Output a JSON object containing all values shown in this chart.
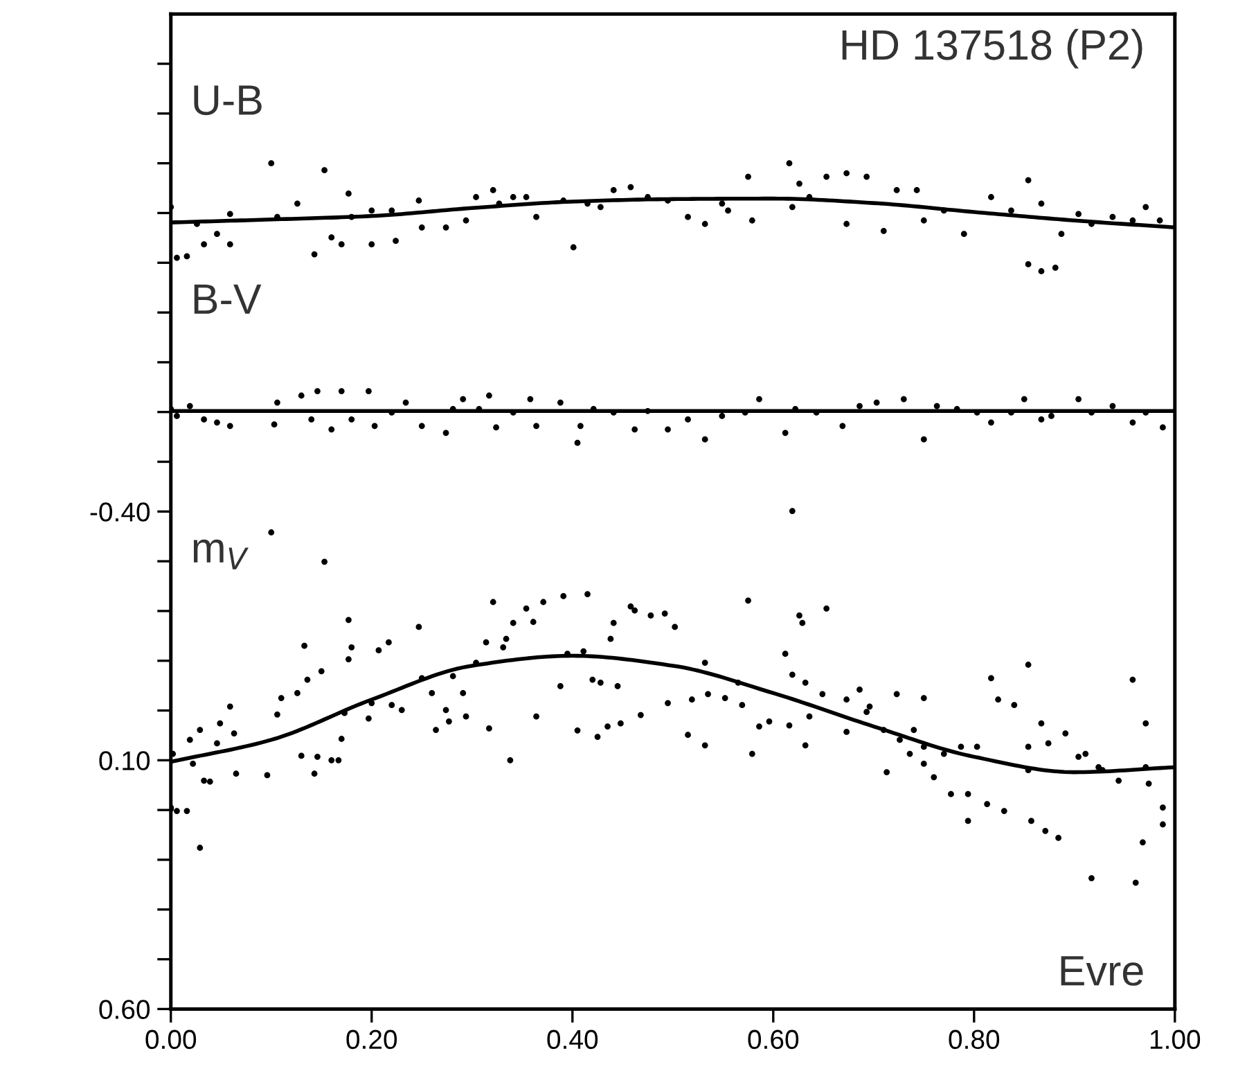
{
  "chart_data": {
    "type": "scatter",
    "title": "HD 137518 (P2)",
    "annotations": [
      "Evre"
    ],
    "xlim": [
      0.0,
      1.0
    ],
    "xticks": [
      {
        "value": 0.0,
        "label": "0.00"
      },
      {
        "value": 0.2,
        "label": "0.20"
      },
      {
        "value": 0.4,
        "label": "0.40"
      },
      {
        "value": 0.6,
        "label": "0.60"
      },
      {
        "value": 0.8,
        "label": "0.80"
      },
      {
        "value": 1.0,
        "label": "1.00"
      }
    ],
    "ylim": [
      0.6,
      -1.4
    ],
    "yticks": [
      {
        "value": -1.3,
        "label": null
      },
      {
        "value": -1.2,
        "label": null
      },
      {
        "value": -1.1,
        "label": null
      },
      {
        "value": -1.0,
        "label": null
      },
      {
        "value": -0.9,
        "label": null
      },
      {
        "value": -0.8,
        "label": null
      },
      {
        "value": -0.7,
        "label": null
      },
      {
        "value": -0.6,
        "label": null
      },
      {
        "value": -0.5,
        "label": null
      },
      {
        "value": -0.4,
        "label": "-0.40"
      },
      {
        "value": -0.3,
        "label": null
      },
      {
        "value": -0.2,
        "label": null
      },
      {
        "value": -0.1,
        "label": null
      },
      {
        "value": 0.0,
        "label": null
      },
      {
        "value": 0.1,
        "label": "0.10"
      },
      {
        "value": 0.2,
        "label": null
      },
      {
        "value": 0.3,
        "label": null
      },
      {
        "value": 0.4,
        "label": null
      },
      {
        "value": 0.5,
        "label": null
      },
      {
        "value": 0.6,
        "label": "0.60"
      }
    ],
    "grid": false,
    "legend": "left",
    "series": [
      {
        "name": "U-B",
        "color": "#000000",
        "marker": "circle",
        "x": [
          0.0,
          0.006,
          0.016,
          0.026,
          0.033,
          0.046,
          0.059,
          0.059,
          0.1,
          0.106,
          0.126,
          0.143,
          0.153,
          0.16,
          0.17,
          0.177,
          0.18,
          0.2,
          0.2,
          0.224,
          0.22,
          0.247,
          0.25,
          0.274,
          0.294,
          0.304,
          0.321,
          0.327,
          0.341,
          0.354,
          0.364,
          0.391,
          0.401,
          0.415,
          0.428,
          0.441,
          0.458,
          0.475,
          0.495,
          0.515,
          0.532,
          0.549,
          0.555,
          0.575,
          0.579,
          0.616,
          0.619,
          0.626,
          0.636,
          0.653,
          0.673,
          0.673,
          0.693,
          0.71,
          0.723,
          0.743,
          0.75,
          0.77,
          0.79,
          0.817,
          0.837,
          0.854,
          0.854,
          0.867,
          0.867,
          0.881,
          0.887,
          0.904,
          0.917,
          0.938,
          0.958,
          0.971,
          0.985
        ],
        "values": [
          -1.012,
          -0.91,
          -0.913,
          -0.978,
          -0.937,
          -0.958,
          -0.937,
          -0.998,
          -1.1,
          -0.992,
          -1.019,
          -0.917,
          -1.086,
          -0.951,
          -0.937,
          -1.039,
          -0.992,
          -1.005,
          -0.937,
          -0.944,
          -1.005,
          -1.025,
          -0.971,
          -0.971,
          -0.985,
          -1.032,
          -1.046,
          -1.019,
          -1.032,
          -1.032,
          -0.992,
          -1.025,
          -0.931,
          -1.019,
          -1.012,
          -1.046,
          -1.052,
          -1.032,
          -1.025,
          -0.992,
          -0.978,
          -1.019,
          -1.005,
          -1.073,
          -0.985,
          -1.1,
          -1.012,
          -1.059,
          -1.032,
          -1.073,
          -1.08,
          -0.978,
          -1.073,
          -0.964,
          -1.046,
          -1.046,
          -0.985,
          -1.005,
          -0.958,
          -1.032,
          -1.005,
          -1.066,
          -0.897,
          -1.019,
          -0.883,
          -0.89,
          -0.958,
          -0.998,
          -0.978,
          -0.992,
          -0.985,
          -1.012,
          -0.985
        ]
      },
      {
        "type": "line",
        "color": "#000000",
        "marker": "none",
        "x": [
          0.0,
          0.1,
          0.2,
          0.3,
          0.4,
          0.5,
          0.6,
          0.7,
          0.8,
          0.9,
          1.0
        ],
        "values": [
          -0.981,
          -0.987,
          -0.994,
          -1.01,
          -1.023,
          -1.028,
          -1.029,
          -1.02,
          -1.002,
          -0.985,
          -0.971
        ]
      },
      {
        "name": "B-V",
        "color": "#000000",
        "marker": "circle",
        "x": [
          0.0,
          0.006,
          0.019,
          0.033,
          0.046,
          0.059,
          0.103,
          0.106,
          0.13,
          0.14,
          0.146,
          0.16,
          0.17,
          0.18,
          0.197,
          0.203,
          0.22,
          0.234,
          0.25,
          0.274,
          0.281,
          0.291,
          0.307,
          0.317,
          0.324,
          0.341,
          0.358,
          0.364,
          0.388,
          0.405,
          0.408,
          0.421,
          0.441,
          0.462,
          0.475,
          0.495,
          0.515,
          0.532,
          0.549,
          0.572,
          0.586,
          0.612,
          0.622,
          0.643,
          0.669,
          0.686,
          0.703,
          0.73,
          0.75,
          0.763,
          0.783,
          0.803,
          0.817,
          0.837,
          0.85,
          0.867,
          0.877,
          0.904,
          0.917,
          0.938,
          0.958,
          0.971,
          0.988
        ],
        "values": [
          -0.606,
          -0.592,
          -0.612,
          -0.585,
          -0.579,
          -0.572,
          -0.575,
          -0.619,
          -0.633,
          -0.585,
          -0.642,
          -0.565,
          -0.642,
          -0.585,
          -0.642,
          -0.572,
          -0.599,
          -0.619,
          -0.572,
          -0.558,
          -0.606,
          -0.626,
          -0.606,
          -0.633,
          -0.569,
          -0.599,
          -0.626,
          -0.572,
          -0.619,
          -0.538,
          -0.572,
          -0.606,
          -0.599,
          -0.565,
          -0.602,
          -0.565,
          -0.585,
          -0.545,
          -0.592,
          -0.599,
          -0.626,
          -0.558,
          -0.606,
          -0.599,
          -0.572,
          -0.612,
          -0.619,
          -0.626,
          -0.545,
          -0.612,
          -0.606,
          -0.599,
          -0.579,
          -0.599,
          -0.626,
          -0.585,
          -0.592,
          -0.626,
          -0.599,
          -0.612,
          -0.579,
          -0.599,
          -0.569
        ]
      },
      {
        "type": "line",
        "color": "#000000",
        "marker": "none",
        "x": [
          0.0,
          1.0
        ],
        "values": [
          -0.602,
          -0.602
        ]
      },
      {
        "name": "m$_{V}$",
        "color": "#000000",
        "marker": "circle",
        "x": [
          0.0,
          0.0,
          0.002,
          0.006,
          0.016,
          0.019,
          0.022,
          0.029,
          0.029,
          0.033,
          0.039,
          0.046,
          0.049,
          0.059,
          0.063,
          0.065,
          0.096,
          0.1,
          0.106,
          0.11,
          0.126,
          0.13,
          0.133,
          0.136,
          0.143,
          0.146,
          0.15,
          0.153,
          0.16,
          0.167,
          0.17,
          0.173,
          0.177,
          0.18,
          0.177,
          0.197,
          0.2,
          0.207,
          0.217,
          0.22,
          0.23,
          0.247,
          0.25,
          0.26,
          0.264,
          0.274,
          0.277,
          0.281,
          0.291,
          0.294,
          0.304,
          0.314,
          0.317,
          0.321,
          0.331,
          0.334,
          0.338,
          0.341,
          0.354,
          0.361,
          0.364,
          0.371,
          0.388,
          0.391,
          0.395,
          0.405,
          0.411,
          0.415,
          0.42,
          0.425,
          0.428,
          0.435,
          0.438,
          0.441,
          0.445,
          0.448,
          0.458,
          0.462,
          0.468,
          0.478,
          0.492,
          0.495,
          0.502,
          0.515,
          0.519,
          0.532,
          0.532,
          0.535,
          0.552,
          0.565,
          0.569,
          0.575,
          0.579,
          0.586,
          0.596,
          0.612,
          0.616,
          0.619,
          0.619,
          0.626,
          0.629,
          0.632,
          0.632,
          0.636,
          0.649,
          0.653,
          0.673,
          0.673,
          0.686,
          0.693,
          0.696,
          0.71,
          0.713,
          0.723,
          0.726,
          0.736,
          0.74,
          0.75,
          0.75,
          0.75,
          0.76,
          0.77,
          0.777,
          0.787,
          0.794,
          0.794,
          0.803,
          0.813,
          0.817,
          0.824,
          0.83,
          0.84,
          0.854,
          0.854,
          0.854,
          0.857,
          0.867,
          0.871,
          0.874,
          0.884,
          0.891,
          0.904,
          0.911,
          0.917,
          0.924,
          0.928,
          0.944,
          0.958,
          0.961,
          0.968,
          0.971,
          0.971,
          0.974,
          0.988,
          0.988
        ],
        "values": [
          0.195,
          0.198,
          0.087,
          0.202,
          0.202,
          0.059,
          0.107,
          0.276,
          0.039,
          0.141,
          0.143,
          0.066,
          0.026,
          -0.008,
          0.046,
          0.127,
          0.13,
          -0.358,
          0.008,
          -0.025,
          -0.035,
          0.091,
          -0.13,
          -0.062,
          0.127,
          0.093,
          -0.079,
          -0.299,
          0.1,
          0.1,
          0.057,
          0.005,
          -0.103,
          -0.127,
          -0.182,
          0.016,
          -0.015,
          -0.121,
          -0.137,
          -0.011,
          -0.001,
          -0.168,
          -0.065,
          -0.035,
          0.039,
          -0.001,
          0.022,
          -0.069,
          -0.035,
          0.012,
          -0.096,
          -0.137,
          0.036,
          -0.218,
          -0.127,
          -0.144,
          0.1,
          -0.176,
          -0.205,
          -0.178,
          0.012,
          -0.218,
          -0.049,
          -0.23,
          -0.114,
          0.04,
          -0.119,
          -0.234,
          -0.062,
          0.053,
          -0.056,
          0.032,
          -0.144,
          -0.176,
          -0.049,
          0.026,
          -0.209,
          -0.201,
          0.009,
          -0.191,
          -0.195,
          -0.015,
          -0.168,
          0.049,
          -0.022,
          -0.096,
          0.07,
          -0.033,
          -0.025,
          -0.056,
          -0.011,
          -0.221,
          0.087,
          0.032,
          0.022,
          -0.114,
          0.03,
          -0.072,
          -0.401,
          -0.191,
          -0.176,
          -0.056,
          0.07,
          0.012,
          -0.033,
          -0.205,
          -0.022,
          0.043,
          -0.042,
          0.003,
          -0.008,
          0.039,
          0.124,
          -0.033,
          0.059,
          0.087,
          0.039,
          0.073,
          -0.025,
          0.107,
          0.134,
          0.087,
          0.168,
          0.073,
          0.222,
          0.168,
          0.073,
          0.188,
          -0.065,
          -0.022,
          0.202,
          -0.011,
          0.073,
          0.12,
          -0.092,
          0.222,
          0.026,
          0.242,
          0.066,
          0.256,
          0.046,
          0.093,
          0.087,
          0.337,
          0.114,
          0.12,
          0.141,
          -0.062,
          0.346,
          0.265,
          0.026,
          0.114,
          0.147,
          0.195,
          0.229
        ]
      },
      {
        "type": "line",
        "color": "#000000",
        "marker": "none",
        "x": [
          0.0,
          0.1,
          0.2,
          0.3,
          0.4,
          0.5,
          0.6,
          0.7,
          0.8,
          0.9,
          1.0
        ],
        "values": [
          0.103,
          0.059,
          -0.022,
          -0.09,
          -0.11,
          -0.09,
          -0.035,
          0.032,
          0.093,
          0.124,
          0.114
        ]
      }
    ]
  }
}
